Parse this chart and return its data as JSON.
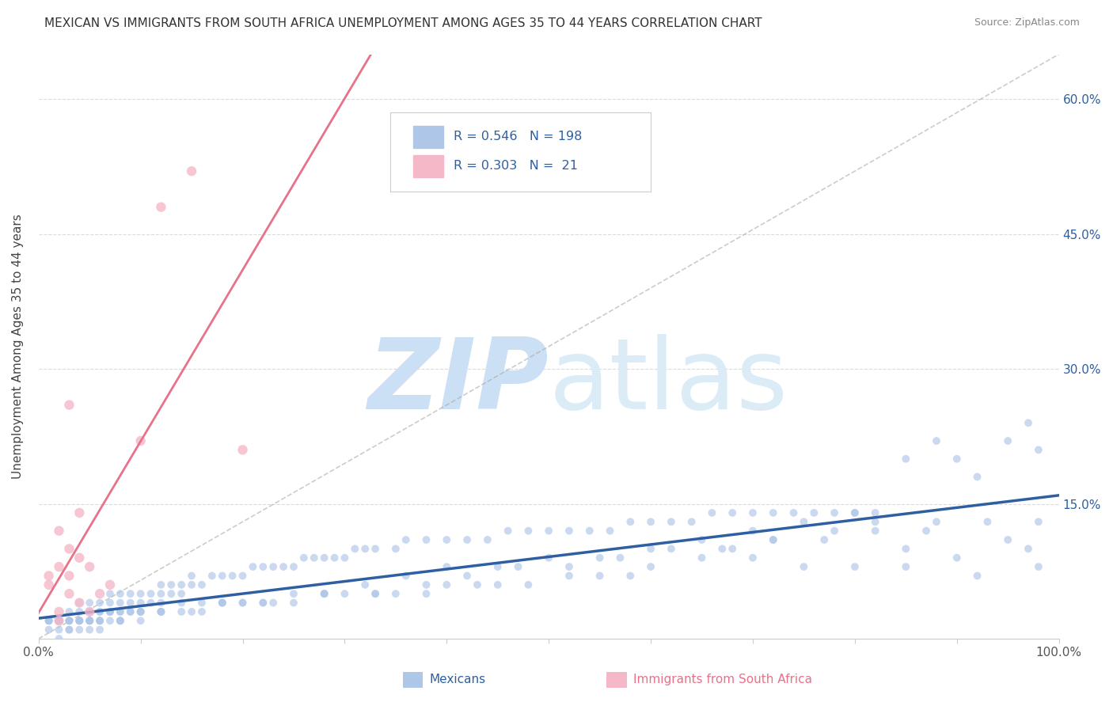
{
  "title": "MEXICAN VS IMMIGRANTS FROM SOUTH AFRICA UNEMPLOYMENT AMONG AGES 35 TO 44 YEARS CORRELATION CHART",
  "source": "Source: ZipAtlas.com",
  "ylabel": "Unemployment Among Ages 35 to 44 years",
  "xlim": [
    0,
    1.0
  ],
  "ylim": [
    0,
    0.65
  ],
  "xticks": [
    0.0,
    0.1,
    0.2,
    0.3,
    0.4,
    0.5,
    0.6,
    0.7,
    0.8,
    0.9,
    1.0
  ],
  "ytick_positions": [
    0.0,
    0.15,
    0.3,
    0.45,
    0.6
  ],
  "ytick_labels_right": [
    "",
    "15.0%",
    "30.0%",
    "45.0%",
    "60.0%"
  ],
  "blue_color": "#aec6e8",
  "blue_line_color": "#2e5fa3",
  "pink_color": "#f4b8c8",
  "pink_line_color": "#e8728a",
  "diag_color": "#bbbbbb",
  "r_blue": 0.546,
  "n_blue": 198,
  "r_pink": 0.303,
  "n_pink": 21,
  "legend_labels": [
    "Mexicans",
    "Immigrants from South Africa"
  ],
  "watermark_zip": "ZIP",
  "watermark_atlas": "atlas",
  "watermark_color": "#cce0f5",
  "blue_scatter_x": [
    0.01,
    0.01,
    0.02,
    0.02,
    0.02,
    0.02,
    0.03,
    0.03,
    0.03,
    0.03,
    0.04,
    0.04,
    0.04,
    0.04,
    0.04,
    0.05,
    0.05,
    0.05,
    0.05,
    0.05,
    0.06,
    0.06,
    0.06,
    0.06,
    0.07,
    0.07,
    0.07,
    0.07,
    0.07,
    0.08,
    0.08,
    0.08,
    0.08,
    0.09,
    0.09,
    0.09,
    0.1,
    0.1,
    0.1,
    0.11,
    0.11,
    0.12,
    0.12,
    0.12,
    0.13,
    0.13,
    0.14,
    0.14,
    0.15,
    0.15,
    0.16,
    0.17,
    0.18,
    0.19,
    0.2,
    0.21,
    0.22,
    0.23,
    0.24,
    0.25,
    0.26,
    0.27,
    0.28,
    0.29,
    0.3,
    0.31,
    0.32,
    0.33,
    0.35,
    0.36,
    0.38,
    0.4,
    0.42,
    0.44,
    0.46,
    0.48,
    0.5,
    0.52,
    0.54,
    0.56,
    0.58,
    0.6,
    0.62,
    0.64,
    0.66,
    0.68,
    0.7,
    0.72,
    0.74,
    0.76,
    0.78,
    0.8,
    0.82,
    0.85,
    0.88,
    0.9,
    0.92,
    0.95,
    0.97,
    0.98,
    0.01,
    0.02,
    0.03,
    0.04,
    0.05,
    0.06,
    0.07,
    0.08,
    0.09,
    0.1,
    0.12,
    0.14,
    0.16,
    0.18,
    0.2,
    0.22,
    0.25,
    0.28,
    0.32,
    0.36,
    0.4,
    0.45,
    0.5,
    0.55,
    0.6,
    0.65,
    0.7,
    0.75,
    0.8,
    0.85,
    0.9,
    0.92,
    0.95,
    0.97,
    0.98,
    0.7,
    0.75,
    0.8,
    0.85,
    0.87,
    0.82,
    0.78,
    0.72,
    0.68,
    0.65,
    0.6,
    0.58,
    0.55,
    0.52,
    0.48,
    0.45,
    0.43,
    0.4,
    0.38,
    0.35,
    0.33,
    0.3,
    0.28,
    0.25,
    0.23,
    0.2,
    0.18,
    0.16,
    0.14,
    0.12,
    0.1,
    0.08,
    0.06,
    0.05,
    0.04,
    0.03,
    0.02,
    0.01,
    0.01,
    0.02,
    0.03,
    0.04,
    0.05,
    0.06,
    0.08,
    0.1,
    0.12,
    0.15,
    0.18,
    0.22,
    0.28,
    0.33,
    0.38,
    0.42,
    0.47,
    0.52,
    0.57,
    0.62,
    0.67,
    0.72,
    0.77,
    0.82,
    0.88,
    0.93,
    0.98
  ],
  "blue_scatter_y": [
    0.01,
    0.02,
    0.01,
    0.02,
    0.0,
    0.02,
    0.01,
    0.02,
    0.03,
    0.01,
    0.02,
    0.03,
    0.01,
    0.02,
    0.04,
    0.02,
    0.03,
    0.01,
    0.02,
    0.04,
    0.03,
    0.02,
    0.01,
    0.04,
    0.03,
    0.02,
    0.04,
    0.03,
    0.05,
    0.04,
    0.03,
    0.05,
    0.02,
    0.04,
    0.03,
    0.05,
    0.04,
    0.05,
    0.03,
    0.05,
    0.04,
    0.05,
    0.06,
    0.04,
    0.06,
    0.05,
    0.06,
    0.05,
    0.06,
    0.07,
    0.06,
    0.07,
    0.07,
    0.07,
    0.07,
    0.08,
    0.08,
    0.08,
    0.08,
    0.08,
    0.09,
    0.09,
    0.09,
    0.09,
    0.09,
    0.1,
    0.1,
    0.1,
    0.1,
    0.11,
    0.11,
    0.11,
    0.11,
    0.11,
    0.12,
    0.12,
    0.12,
    0.12,
    0.12,
    0.12,
    0.13,
    0.13,
    0.13,
    0.13,
    0.14,
    0.14,
    0.14,
    0.14,
    0.14,
    0.14,
    0.14,
    0.14,
    0.14,
    0.2,
    0.22,
    0.2,
    0.18,
    0.22,
    0.24,
    0.21,
    0.02,
    0.02,
    0.02,
    0.02,
    0.02,
    0.03,
    0.03,
    0.03,
    0.03,
    0.03,
    0.03,
    0.04,
    0.04,
    0.04,
    0.04,
    0.04,
    0.05,
    0.05,
    0.06,
    0.07,
    0.08,
    0.08,
    0.09,
    0.09,
    0.1,
    0.11,
    0.12,
    0.13,
    0.14,
    0.08,
    0.09,
    0.07,
    0.11,
    0.1,
    0.08,
    0.09,
    0.08,
    0.08,
    0.1,
    0.12,
    0.13,
    0.12,
    0.11,
    0.1,
    0.09,
    0.08,
    0.07,
    0.07,
    0.07,
    0.06,
    0.06,
    0.06,
    0.06,
    0.05,
    0.05,
    0.05,
    0.05,
    0.05,
    0.04,
    0.04,
    0.04,
    0.04,
    0.03,
    0.03,
    0.03,
    0.03,
    0.02,
    0.02,
    0.02,
    0.02,
    0.02,
    0.02,
    0.02,
    0.02,
    0.02,
    0.02,
    0.02,
    0.02,
    0.02,
    0.02,
    0.02,
    0.03,
    0.03,
    0.04,
    0.04,
    0.05,
    0.05,
    0.06,
    0.07,
    0.08,
    0.08,
    0.09,
    0.1,
    0.1,
    0.11,
    0.11,
    0.12,
    0.13,
    0.13,
    0.13
  ],
  "pink_scatter_x": [
    0.01,
    0.01,
    0.02,
    0.02,
    0.02,
    0.03,
    0.03,
    0.03,
    0.04,
    0.04,
    0.05,
    0.05,
    0.06,
    0.07,
    0.1,
    0.12,
    0.15,
    0.2,
    0.03,
    0.04,
    0.02
  ],
  "pink_scatter_y": [
    0.06,
    0.07,
    0.08,
    0.12,
    0.03,
    0.1,
    0.26,
    0.05,
    0.04,
    0.14,
    0.08,
    0.03,
    0.05,
    0.06,
    0.22,
    0.48,
    0.52,
    0.21,
    0.07,
    0.09,
    0.02
  ]
}
